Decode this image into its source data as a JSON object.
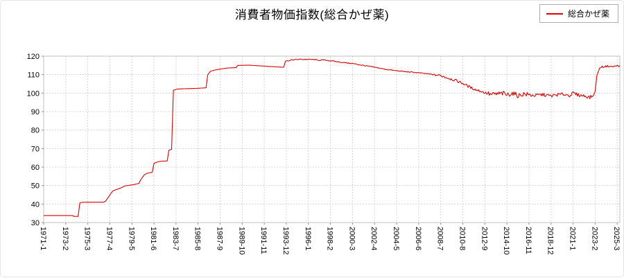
{
  "page": {
    "background": "#ffffff"
  },
  "chart_data": {
    "type": "line",
    "title": "消費者物価指数(総合かぜ薬)",
    "legend": {
      "label": "総合かぜ薬",
      "position": "top-right"
    },
    "series_name": "総合かぜ薬",
    "series_color": "#dd0000",
    "x_start": "1971-1",
    "x_end": "2025-6",
    "x_tick_interval_months": 25,
    "x_tick_labels": [
      "1971-1",
      "1973-2",
      "1975-3",
      "1977-4",
      "1979-5",
      "1981-6",
      "1983-7",
      "1985-8",
      "1987-9",
      "1989-10",
      "1991-11",
      "1993-12",
      "1996-1",
      "1998-2",
      "2000-3",
      "2002-4",
      "2004-5",
      "2006-6",
      "2008-7",
      "2010-8",
      "2012-9",
      "2014-10",
      "2016-11",
      "2018-12",
      "2021-1",
      "2023-2",
      "2025-3"
    ],
    "ylim": [
      30,
      120
    ],
    "y_ticks": [
      30,
      40,
      50,
      60,
      70,
      80,
      90,
      100,
      110,
      120
    ],
    "grid": true,
    "anchors": [
      [
        "1971-1",
        33.8
      ],
      [
        "1973-2",
        33.8
      ],
      [
        "1973-10",
        33.8
      ],
      [
        "1973-11",
        33.3
      ],
      [
        "1974-4",
        33.3
      ],
      [
        "1974-6",
        40.6
      ],
      [
        "1974-10",
        41.0
      ],
      [
        "1976-9",
        41.0
      ],
      [
        "1976-11",
        41.5
      ],
      [
        "1977-2",
        43.5
      ],
      [
        "1977-7",
        47.0
      ],
      [
        "1977-11",
        47.8
      ],
      [
        "1978-4",
        48.6
      ],
      [
        "1978-9",
        49.8
      ],
      [
        "1979-3",
        50.2
      ],
      [
        "1979-8",
        50.6
      ],
      [
        "1980-1",
        51.2
      ],
      [
        "1980-3",
        53.2
      ],
      [
        "1980-7",
        55.8
      ],
      [
        "1980-10",
        56.6
      ],
      [
        "1981-2",
        57.0
      ],
      [
        "1981-4",
        57.2
      ],
      [
        "1981-6",
        62.0
      ],
      [
        "1981-10",
        62.8
      ],
      [
        "1982-2",
        63.2
      ],
      [
        "1982-9",
        63.3
      ],
      [
        "1982-11",
        69.2
      ],
      [
        "1983-2",
        69.6
      ],
      [
        "1983-4",
        101.5
      ],
      [
        "1983-8",
        102.2
      ],
      [
        "1984-6",
        102.4
      ],
      [
        "1985-8",
        102.6
      ],
      [
        "1986-5",
        102.9
      ],
      [
        "1986-7",
        110.0
      ],
      [
        "1986-10",
        111.8
      ],
      [
        "1987-2",
        112.4
      ],
      [
        "1987-9",
        113.0
      ],
      [
        "1988-6",
        113.6
      ],
      [
        "1989-3",
        113.8
      ],
      [
        "1989-5",
        115.0
      ],
      [
        "1990-6",
        115.1
      ],
      [
        "1991-11",
        114.6
      ],
      [
        "1993-1",
        114.2
      ],
      [
        "1993-9",
        114.0
      ],
      [
        "1993-11",
        117.3
      ],
      [
        "1994-6",
        117.9
      ],
      [
        "1995-2",
        118.3
      ],
      [
        "1996-6",
        118.2
      ],
      [
        "1997-3",
        117.7
      ],
      [
        "1997-5",
        118.0
      ],
      [
        "1998-2",
        117.5
      ],
      [
        "1999-2",
        116.7
      ],
      [
        "2000-3",
        116.0
      ],
      [
        "2001-2",
        115.1
      ],
      [
        "2002-4",
        114.0
      ],
      [
        "2003-3",
        113.0
      ],
      [
        "2004-5",
        112.1
      ],
      [
        "2005-3",
        111.6
      ],
      [
        "2006-6",
        111.0
      ],
      [
        "2007-3",
        110.5
      ],
      [
        "2008-7",
        109.5
      ],
      [
        "2009-3",
        108.2
      ],
      [
        "2009-11",
        107.0
      ],
      [
        "2010-8",
        105.3
      ],
      [
        "2011-4",
        103.2
      ],
      [
        "2011-11",
        101.8
      ],
      [
        "2012-5",
        101.0
      ],
      [
        "2012-9",
        100.2
      ],
      [
        "2013-4",
        99.2
      ],
      [
        "2013-12",
        99.6
      ],
      [
        "2014-6",
        99.9
      ],
      [
        "2014-10",
        99.0
      ],
      [
        "2015-4",
        100.0
      ],
      [
        "2015-11",
        98.6
      ],
      [
        "2016-5",
        99.6
      ],
      [
        "2016-11",
        99.0
      ],
      [
        "2017-6",
        98.7
      ],
      [
        "2018-2",
        99.2
      ],
      [
        "2018-12",
        98.5
      ],
      [
        "2019-7",
        99.1
      ],
      [
        "2020-2",
        99.4
      ],
      [
        "2020-9",
        98.8
      ],
      [
        "2021-1",
        100.0
      ],
      [
        "2021-7",
        99.0
      ],
      [
        "2022-2",
        98.5
      ],
      [
        "2022-8",
        97.7
      ],
      [
        "2022-12",
        98.6
      ],
      [
        "2023-2",
        101.0
      ],
      [
        "2023-4",
        109.5
      ],
      [
        "2023-7",
        113.5
      ],
      [
        "2023-10",
        114.2
      ],
      [
        "2024-4",
        114.6
      ],
      [
        "2024-10",
        114.3
      ],
      [
        "2025-3",
        114.8
      ],
      [
        "2025-6",
        114.7
      ]
    ],
    "noise_bands": [
      {
        "from": "1994-1",
        "to": "2007-12",
        "amp": 0.25
      },
      {
        "from": "2008-1",
        "to": "2012-12",
        "amp": 0.7
      },
      {
        "from": "2013-1",
        "to": "2016-12",
        "amp": 1.3
      },
      {
        "from": "2017-1",
        "to": "2022-10",
        "amp": 0.9
      },
      {
        "from": "2023-9",
        "to": "2025-6",
        "amp": 0.45
      }
    ],
    "colors": {
      "grid": "#d4d4d4",
      "plot_border": "#c0c0c0",
      "axis_text": "#000000"
    }
  }
}
